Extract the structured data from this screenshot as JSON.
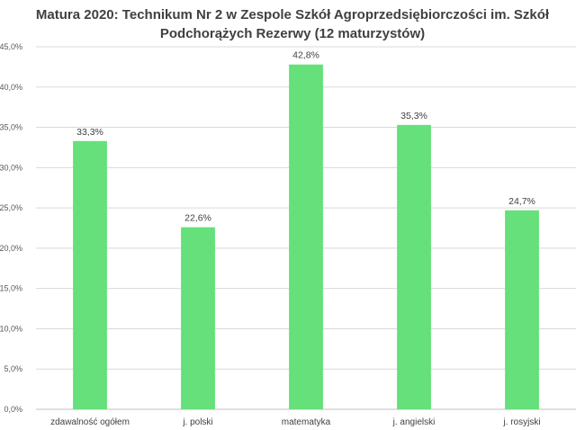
{
  "chart_data": {
    "type": "bar",
    "title_lines": [
      "Matura 2020: Technikum Nr 2 w Zespole Szkół Agroprzedsiębiorczości im. Szkół",
      "Podchorążych Rezerwy (12 maturzystów)"
    ],
    "categories": [
      "zdawalność ogółem",
      "j. polski",
      "matematyka",
      "j. angielski",
      "j. rosyjski"
    ],
    "values": [
      33.3,
      22.6,
      42.8,
      35.3,
      24.7
    ],
    "data_labels": [
      "33,3%",
      "22,6%",
      "42,8%",
      "35,3%",
      "24,7%"
    ],
    "ylim": [
      0,
      45
    ],
    "yticks": [
      0,
      5,
      10,
      15,
      20,
      25,
      30,
      35,
      40,
      45
    ],
    "ytick_labels": [
      "0,0%",
      "5,0%",
      "10,0%",
      "15,0%",
      "20,0%",
      "25,0%",
      "30,0%",
      "35,0%",
      "40,0%",
      "45,0%"
    ],
    "xlabel": "",
    "ylabel": "",
    "grid": true,
    "legend": "none",
    "colors": {
      "bar": "#66e07a",
      "grid": "#d9d9d9",
      "axis": "#bfbfbf"
    }
  }
}
